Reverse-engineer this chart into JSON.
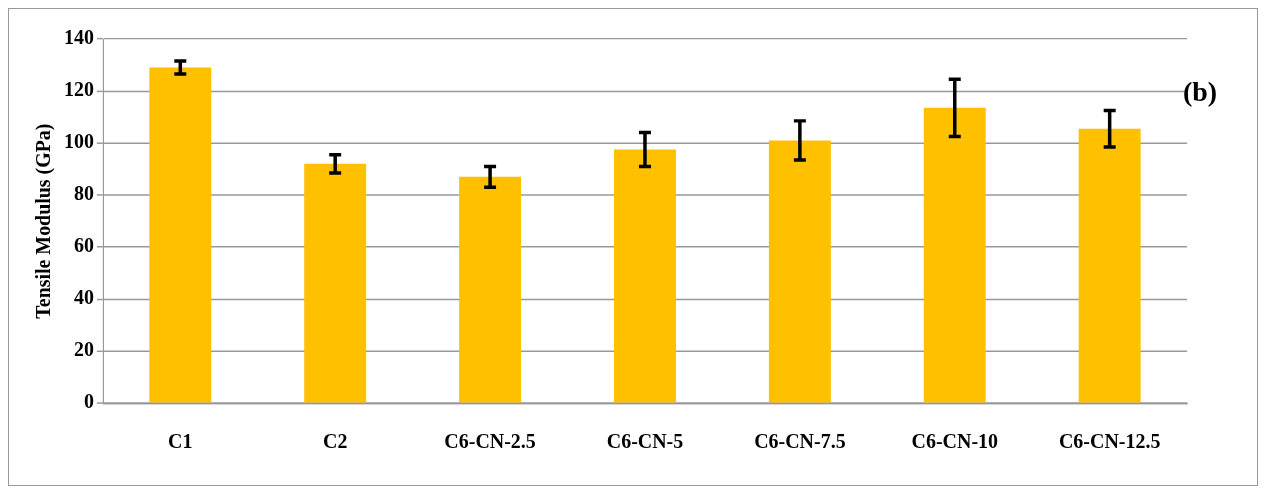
{
  "chart_data": {
    "type": "bar",
    "ylabel": "Tensile Modulus (GPa)",
    "annotations": [
      "(b)"
    ],
    "categories": [
      "C1",
      "C2",
      "C6-CN-2.5",
      "C6-CN-5",
      "C6-CN-7.5",
      "C6-CN-10",
      "C6-CN-12.5"
    ],
    "values": [
      129,
      92,
      87,
      97.5,
      101,
      113.5,
      105.5
    ],
    "errors": [
      2.5,
      3.5,
      4,
      6.5,
      7.5,
      11,
      7
    ],
    "color": "#ffc000",
    "ylim": [
      0,
      140
    ],
    "yticks": [
      0,
      20,
      40,
      60,
      80,
      100,
      120,
      140
    ],
    "grid": "y",
    "legend": false
  }
}
